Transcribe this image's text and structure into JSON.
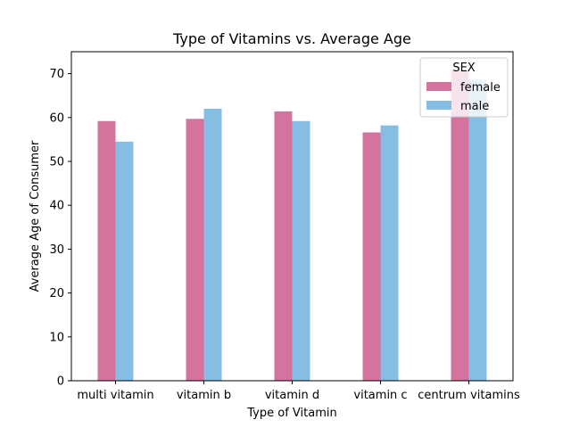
{
  "chart_data": {
    "type": "bar",
    "title": "Type of Vitamins vs. Average Age",
    "xlabel": "Type of Vitamin",
    "ylabel": "Average Age of Consumer",
    "categories": [
      "multi vitamin",
      "vitamin b",
      "vitamin d",
      "vitamin c",
      "centrum vitamins"
    ],
    "series": [
      {
        "name": "female",
        "color": "#d5739f",
        "values": [
          59.2,
          59.7,
          61.4,
          56.6,
          70.8
        ]
      },
      {
        "name": "male",
        "color": "#86bde2",
        "values": [
          54.5,
          62.0,
          59.2,
          58.2,
          68.6
        ]
      }
    ],
    "ylim": [
      0,
      75
    ],
    "yticks": [
      0,
      10,
      20,
      30,
      40,
      50,
      60,
      70
    ],
    "legend": {
      "title": "SEX",
      "position": "top-right"
    },
    "grid": false
  }
}
